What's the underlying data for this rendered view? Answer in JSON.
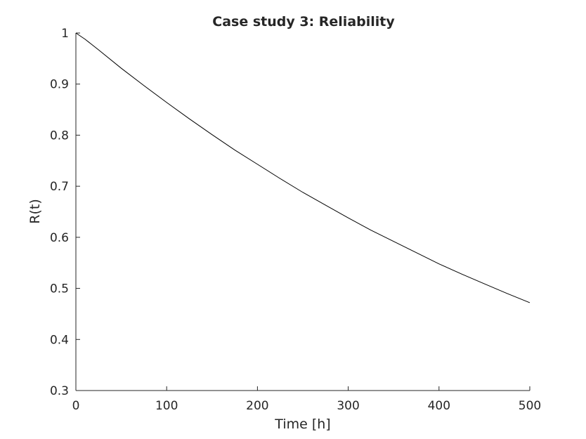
{
  "chart_data": {
    "type": "line",
    "title": "Case study 3: Reliability",
    "xlabel": "Time [h]",
    "ylabel": "R(t)",
    "xlim": [
      0,
      500
    ],
    "ylim": [
      0.3,
      1
    ],
    "xticks": [
      0,
      100,
      200,
      300,
      400,
      500
    ],
    "xtick_labels": [
      "0",
      "100",
      "200",
      "300",
      "400",
      "500"
    ],
    "yticks": [
      0.3,
      0.4,
      0.5,
      0.6,
      0.7,
      0.8,
      0.9,
      1
    ],
    "ytick_labels": [
      "0.3",
      "0.4",
      "0.5",
      "0.6",
      "0.7",
      "0.8",
      "0.9",
      "1"
    ],
    "grid": false,
    "legend": "none",
    "series": [
      {
        "color": "#000000",
        "x": [
          0,
          10,
          25,
          50,
          75,
          100,
          125,
          150,
          175,
          200,
          225,
          250,
          275,
          300,
          325,
          350,
          375,
          400,
          425,
          450,
          475,
          500
        ],
        "y": [
          1.0,
          0.988,
          0.967,
          0.931,
          0.897,
          0.864,
          0.832,
          0.801,
          0.771,
          0.743,
          0.715,
          0.688,
          0.663,
          0.638,
          0.614,
          0.592,
          0.57,
          0.548,
          0.528,
          0.509,
          0.49,
          0.472
        ]
      }
    ]
  }
}
